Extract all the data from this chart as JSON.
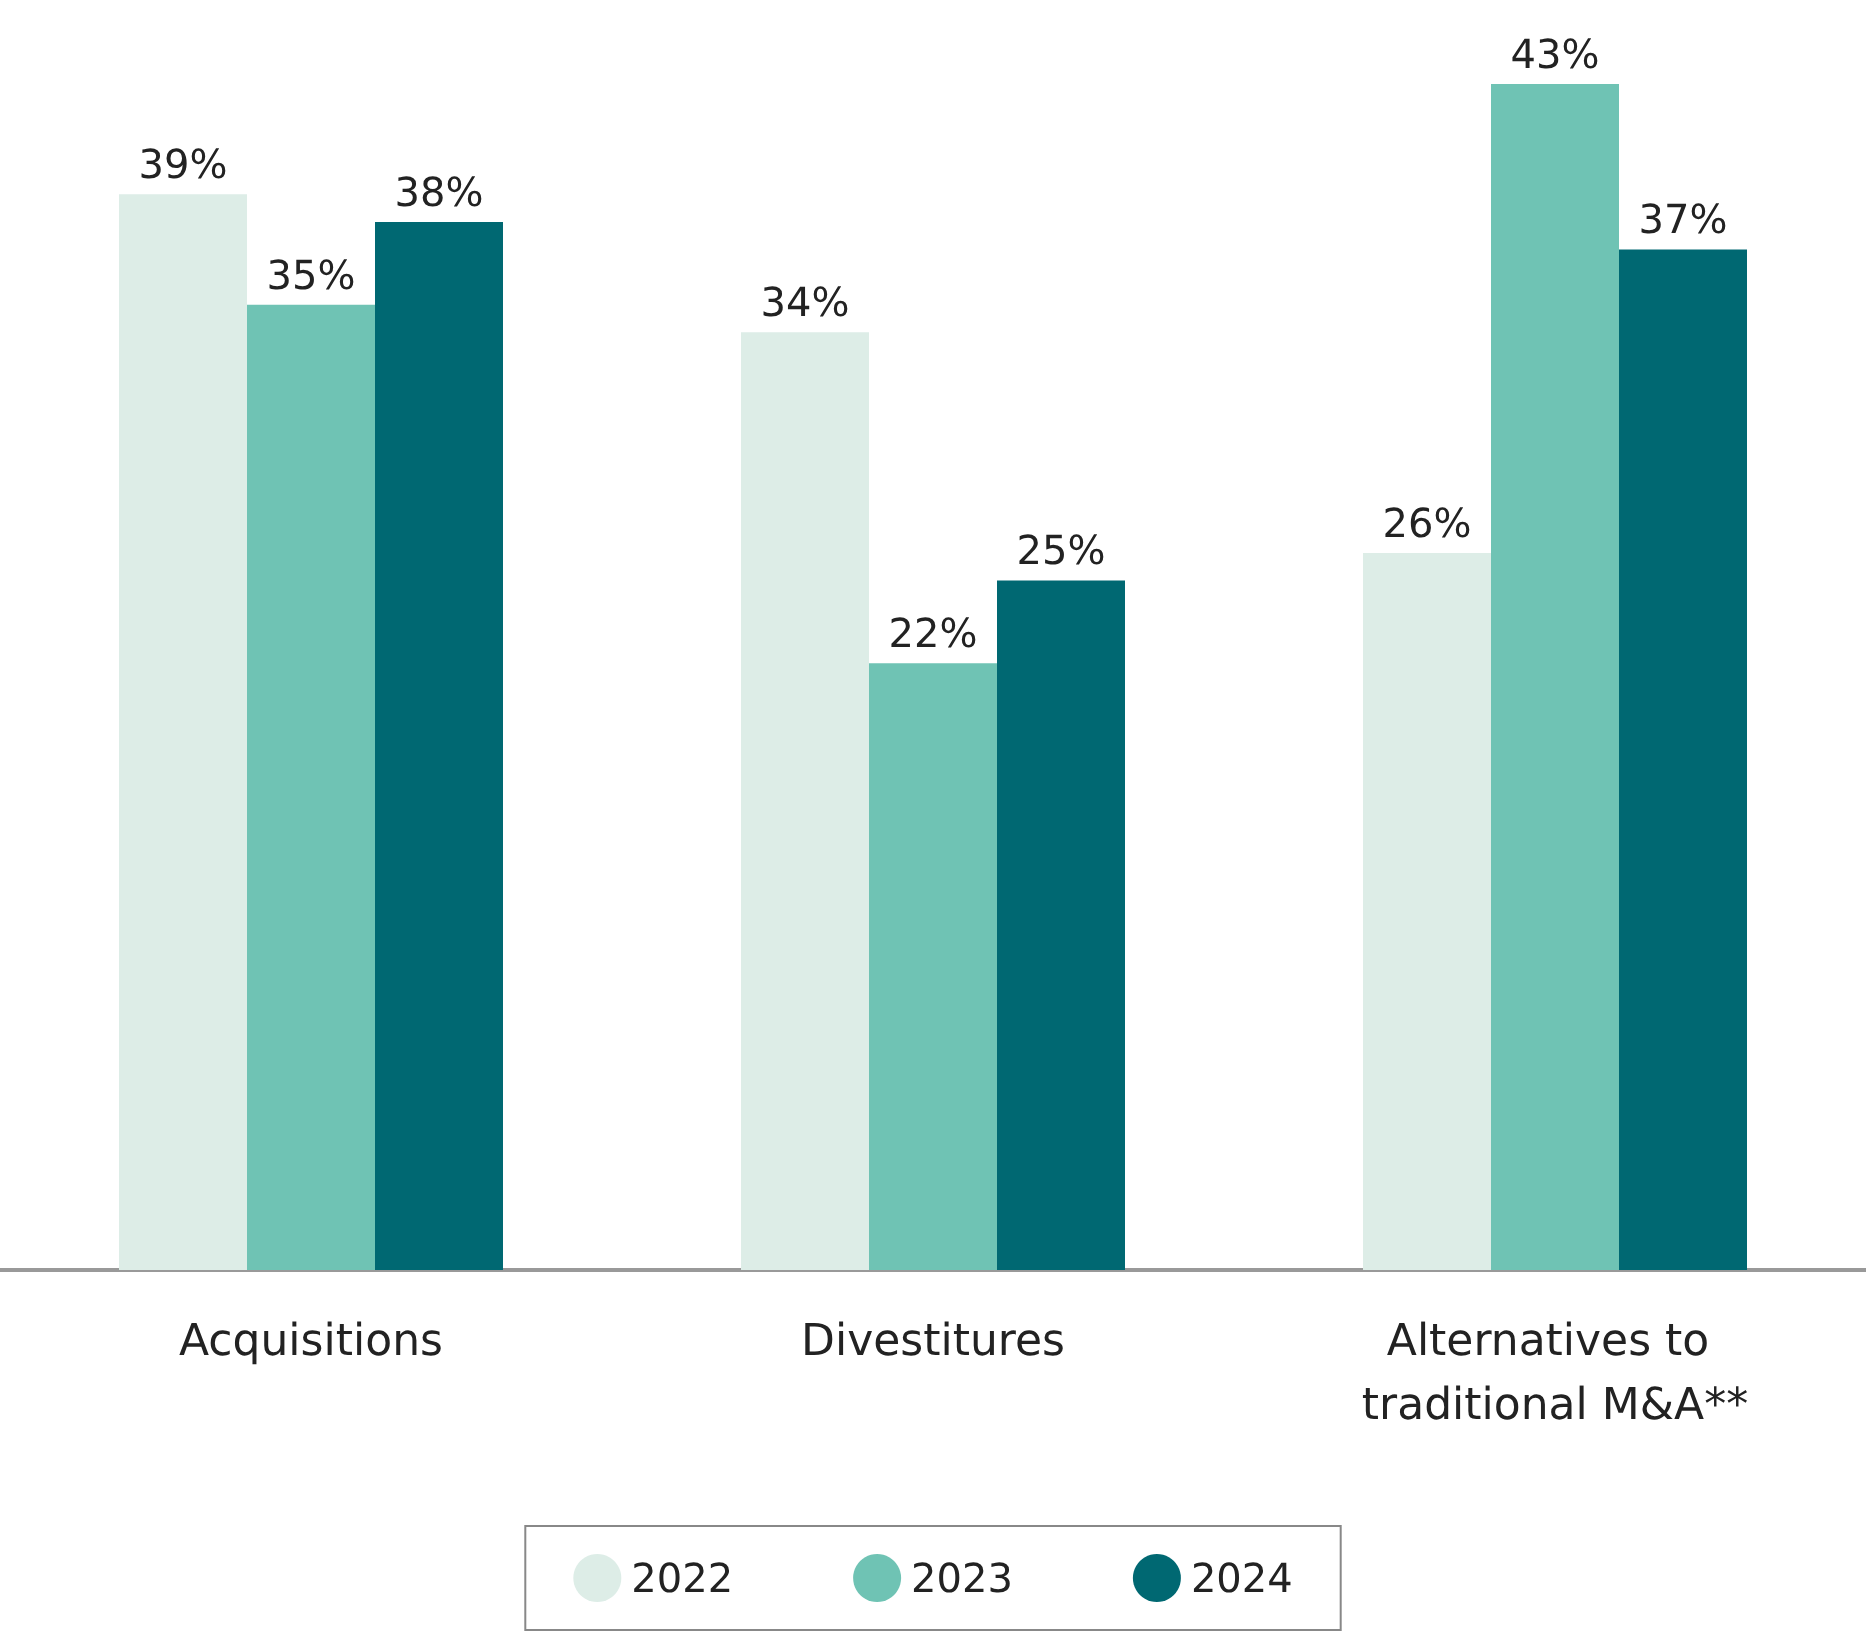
{
  "chart_data": {
    "type": "bar",
    "categories": [
      "Acquisitions",
      "Divestitures",
      "Alternatives to traditional M&A**"
    ],
    "series": [
      {
        "name": "2022",
        "color": "#ddede7",
        "values": [
          39,
          34,
          26
        ],
        "value_labels": [
          "39%",
          "34%",
          "26%"
        ]
      },
      {
        "name": "2023",
        "color": "#6fc3b4",
        "values": [
          35,
          22,
          43
        ],
        "value_labels": [
          "35%",
          "22%",
          "43%"
        ]
      },
      {
        "name": "2024",
        "color": "#006872",
        "values": [
          38,
          25,
          37
        ],
        "value_labels": [
          "38%",
          "25%",
          "37%"
        ]
      }
    ],
    "legend": "bottom",
    "grid": false
  }
}
